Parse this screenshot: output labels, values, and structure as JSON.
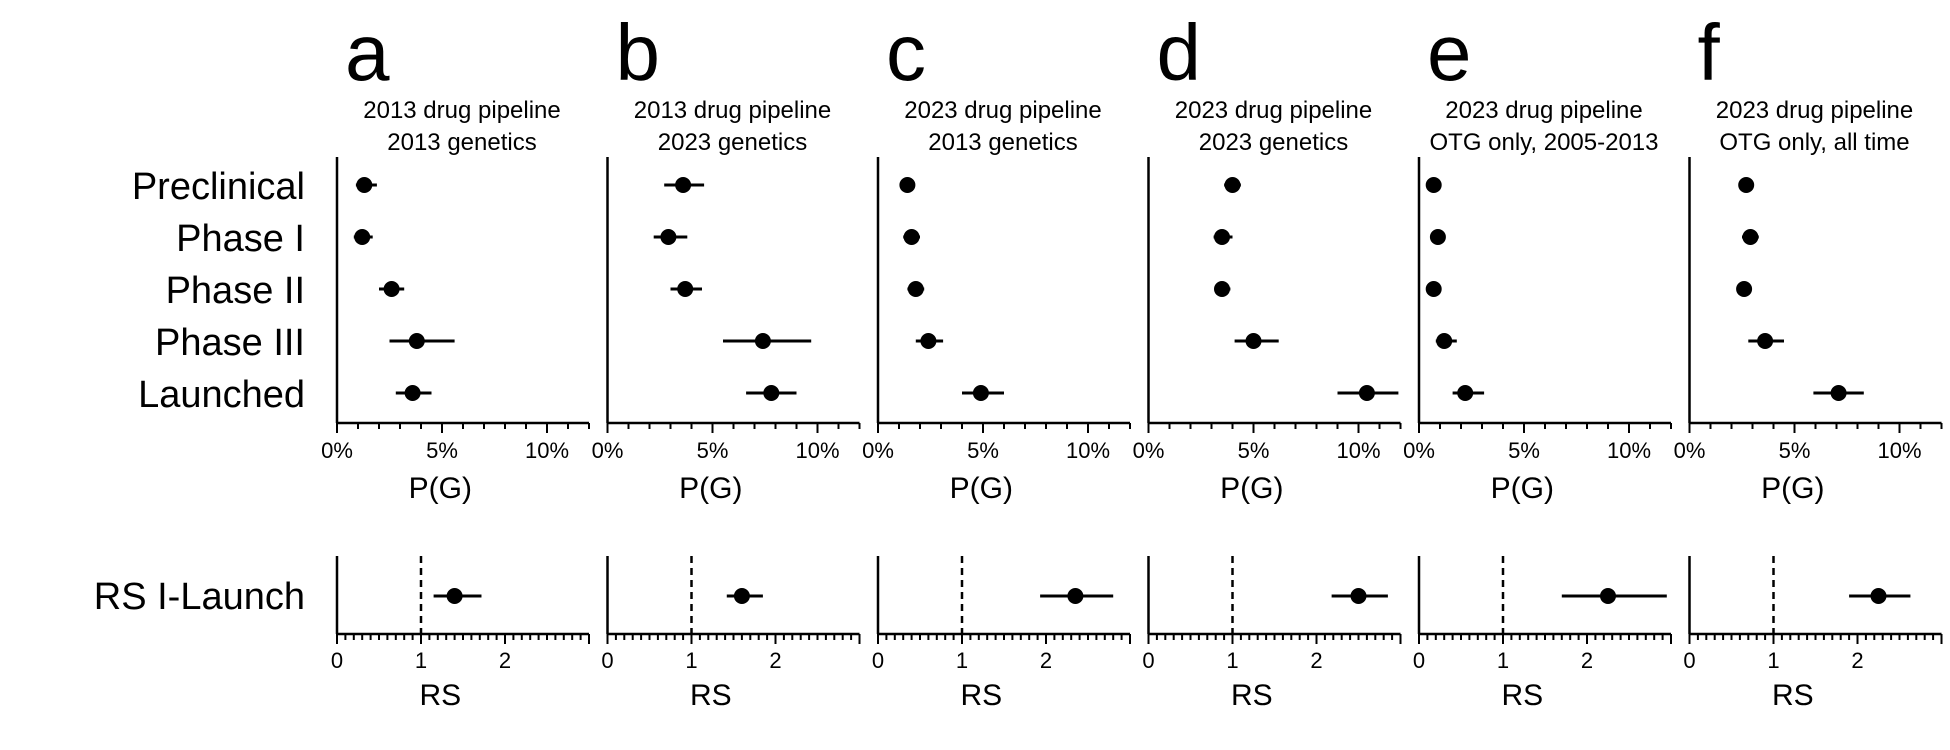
{
  "chart_data": {
    "type": "scatter",
    "row_labels": [
      "Preclinical",
      "Phase I",
      "Phase II",
      "Phase III",
      "Launched"
    ],
    "rs_row_label": "RS I-Launch",
    "pg_axis": {
      "label": "P(G)",
      "range": [
        0,
        12
      ],
      "tick_labels": [
        "0%",
        "5%",
        "10%"
      ],
      "ticks": [
        0,
        5,
        10
      ]
    },
    "rs_axis": {
      "label": "RS",
      "range": [
        0,
        3
      ],
      "tick_labels": [
        "0",
        "1",
        "2"
      ],
      "ticks": [
        0,
        1,
        2
      ],
      "reference": 1
    },
    "panels": [
      {
        "letter": "a",
        "subtitle": [
          "2013 drug pipeline",
          "2013 genetics"
        ],
        "pg": [
          {
            "est": 1.3,
            "lo": 0.9,
            "hi": 1.9
          },
          {
            "est": 1.2,
            "lo": 0.8,
            "hi": 1.7
          },
          {
            "est": 2.6,
            "lo": 2.0,
            "hi": 3.2
          },
          {
            "est": 3.8,
            "lo": 2.5,
            "hi": 5.6
          },
          {
            "est": 3.6,
            "lo": 2.8,
            "hi": 4.5
          }
        ],
        "rs": {
          "est": 1.4,
          "lo": 1.15,
          "hi": 1.72
        }
      },
      {
        "letter": "b",
        "subtitle": [
          "2013 drug pipeline",
          "2023 genetics"
        ],
        "pg": [
          {
            "est": 3.6,
            "lo": 2.7,
            "hi": 4.6
          },
          {
            "est": 2.9,
            "lo": 2.2,
            "hi": 3.8
          },
          {
            "est": 3.7,
            "lo": 3.0,
            "hi": 4.5
          },
          {
            "est": 7.4,
            "lo": 5.5,
            "hi": 9.7
          },
          {
            "est": 7.8,
            "lo": 6.6,
            "hi": 9.0
          }
        ],
        "rs": {
          "est": 1.6,
          "lo": 1.42,
          "hi": 1.85
        }
      },
      {
        "letter": "c",
        "subtitle": [
          "2023 drug pipeline",
          "2013 genetics"
        ],
        "pg": [
          {
            "est": 1.4,
            "lo": 1.1,
            "hi": 1.7
          },
          {
            "est": 1.6,
            "lo": 1.2,
            "hi": 2.0
          },
          {
            "est": 1.8,
            "lo": 1.4,
            "hi": 2.2
          },
          {
            "est": 2.4,
            "lo": 1.8,
            "hi": 3.1
          },
          {
            "est": 4.9,
            "lo": 4.0,
            "hi": 6.0
          }
        ],
        "rs": {
          "est": 2.35,
          "lo": 1.93,
          "hi": 2.8
        }
      },
      {
        "letter": "d",
        "subtitle": [
          "2023 drug pipeline",
          "2023 genetics"
        ],
        "pg": [
          {
            "est": 4.0,
            "lo": 3.6,
            "hi": 4.4
          },
          {
            "est": 3.5,
            "lo": 3.1,
            "hi": 4.0
          },
          {
            "est": 3.5,
            "lo": 3.2,
            "hi": 3.9
          },
          {
            "est": 5.0,
            "lo": 4.1,
            "hi": 6.2
          },
          {
            "est": 10.4,
            "lo": 9.0,
            "hi": 11.9
          }
        ],
        "rs": {
          "est": 2.5,
          "lo": 2.18,
          "hi": 2.85
        }
      },
      {
        "letter": "e",
        "subtitle": [
          "2023 drug pipeline",
          "OTG only, 2005-2013"
        ],
        "pg": [
          {
            "est": 0.7,
            "lo": 0.5,
            "hi": 1.0
          },
          {
            "est": 0.9,
            "lo": 0.6,
            "hi": 1.2
          },
          {
            "est": 0.7,
            "lo": 0.5,
            "hi": 0.9
          },
          {
            "est": 1.2,
            "lo": 0.8,
            "hi": 1.8
          },
          {
            "est": 2.2,
            "lo": 1.6,
            "hi": 3.1
          }
        ],
        "rs": {
          "est": 2.25,
          "lo": 1.7,
          "hi": 2.95
        }
      },
      {
        "letter": "f",
        "subtitle": [
          "2023 drug pipeline",
          "OTG only, all time"
        ],
        "pg": [
          {
            "est": 2.7,
            "lo": 2.4,
            "hi": 3.0
          },
          {
            "est": 2.9,
            "lo": 2.5,
            "hi": 3.3
          },
          {
            "est": 2.6,
            "lo": 2.3,
            "hi": 2.9
          },
          {
            "est": 3.6,
            "lo": 2.8,
            "hi": 4.5
          },
          {
            "est": 7.1,
            "lo": 5.9,
            "hi": 8.3
          }
        ],
        "rs": {
          "est": 2.25,
          "lo": 1.9,
          "hi": 2.63
        }
      }
    ]
  }
}
